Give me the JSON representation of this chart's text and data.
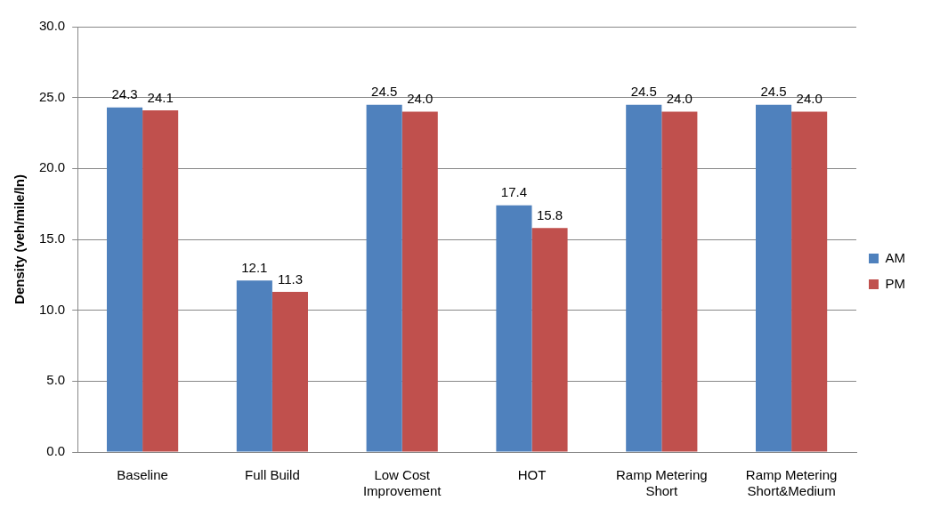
{
  "chart_data": {
    "type": "bar",
    "ylabel": "Density (veh/mile/ln)",
    "categories": [
      "Baseline",
      "Full Build",
      "Low Cost Improvement",
      "HOT",
      "Ramp Metering Short",
      "Ramp Metering Short&Medium"
    ],
    "series": [
      {
        "name": "AM",
        "color": "#4f81bd",
        "values": [
          24.3,
          12.1,
          24.5,
          17.4,
          24.5,
          24.5
        ],
        "value_labels": [
          "24.3",
          "12.1",
          "24.5",
          "17.4",
          "24.5",
          "24.5"
        ]
      },
      {
        "name": "PM",
        "color": "#c0504d",
        "values": [
          24.1,
          11.3,
          24.0,
          15.8,
          24.0,
          24.0
        ],
        "value_labels": [
          "24.1",
          "11.3",
          "24.0",
          "15.8",
          "24.0",
          "24.0"
        ]
      }
    ],
    "ylim": [
      0,
      30
    ],
    "yticks": [
      {
        "value": 0,
        "label": "0.0"
      },
      {
        "value": 5,
        "label": "5.0"
      },
      {
        "value": 10,
        "label": "10.0"
      },
      {
        "value": 15,
        "label": "15.0"
      },
      {
        "value": 20,
        "label": "20.0"
      },
      {
        "value": 25,
        "label": "25.0"
      },
      {
        "value": 30,
        "label": "30.0"
      }
    ],
    "grid": "y",
    "legend": "right"
  }
}
